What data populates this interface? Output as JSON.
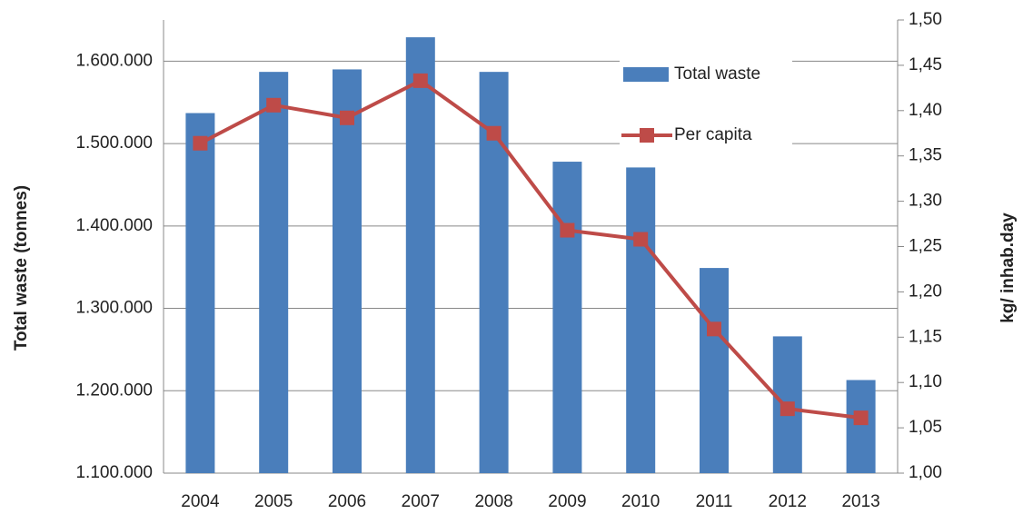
{
  "chart_data": {
    "type": "bar_line",
    "categories": [
      "2004",
      "2005",
      "2006",
      "2007",
      "2008",
      "2009",
      "2010",
      "2011",
      "2012",
      "2013"
    ],
    "ylabel": "Total waste (tonnes)",
    "y2label": "kg/ inhab.day",
    "ylim": [
      1100000,
      1650000
    ],
    "yticks": [
      {
        "value": 1100000,
        "label": "1.100.000"
      },
      {
        "value": 1200000,
        "label": "1.200.000"
      },
      {
        "value": 1300000,
        "label": "1.300.000"
      },
      {
        "value": 1400000,
        "label": "1.400.000"
      },
      {
        "value": 1500000,
        "label": "1.500.000"
      },
      {
        "value": 1600000,
        "label": "1.600.000"
      }
    ],
    "y2lim": [
      1.0,
      1.5
    ],
    "y2ticks": [
      {
        "value": 1.0,
        "label": "1,00"
      },
      {
        "value": 1.05,
        "label": "1,05"
      },
      {
        "value": 1.1,
        "label": "1,10"
      },
      {
        "value": 1.15,
        "label": "1,15"
      },
      {
        "value": 1.2,
        "label": "1,20"
      },
      {
        "value": 1.25,
        "label": "1,25"
      },
      {
        "value": 1.3,
        "label": "1,30"
      },
      {
        "value": 1.35,
        "label": "1,35"
      },
      {
        "value": 1.4,
        "label": "1,40"
      },
      {
        "value": 1.45,
        "label": "1,45"
      },
      {
        "value": 1.5,
        "label": "1,50"
      }
    ],
    "grid": true,
    "series": [
      {
        "name": "Total waste",
        "type": "bar",
        "color": "#4a7ebb",
        "values": [
          1537000,
          1587000,
          1590000,
          1629000,
          1587000,
          1478000,
          1471000,
          1349000,
          1266000,
          1213000
        ]
      },
      {
        "name": "Per capita",
        "type": "line",
        "axis": "y2",
        "color": "#be4b48",
        "values": [
          1.364,
          1.406,
          1.392,
          1.433,
          1.375,
          1.268,
          1.258,
          1.159,
          1.071,
          1.061
        ]
      }
    ]
  }
}
